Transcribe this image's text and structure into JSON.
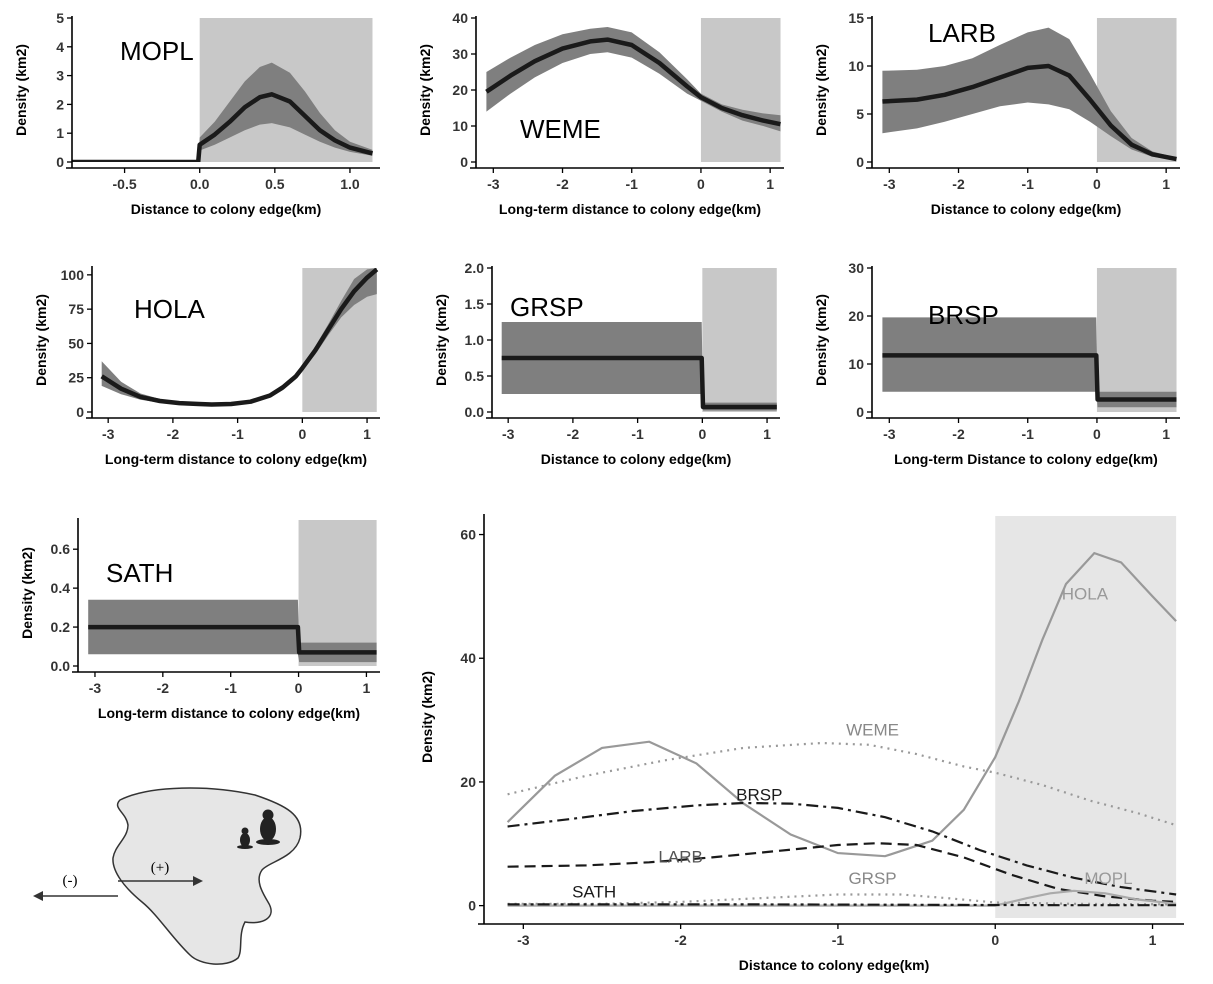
{
  "colors": {
    "colony_shade": "#c8c8c8",
    "colony_shade_light": "#e6e6e6",
    "ci_band": "#7f7f7f",
    "line": "#1a1a1a",
    "light_line": "#999999"
  },
  "inset": {
    "minus_label": "(-)",
    "plus_label": "(+)",
    "icons": [
      "prairie-dog-icon",
      "prairie-dog-small-icon"
    ]
  },
  "chart_data": [
    {
      "id": "mopl",
      "type": "line",
      "label": "MOPL",
      "xlabel": "Distance to colony edge(km)",
      "ylabel": "Density (km2)",
      "xlim": [
        -0.85,
        1.2
      ],
      "ylim": [
        0,
        5
      ],
      "xticks": [
        -0.5,
        0,
        0.5,
        1
      ],
      "xtick_labels": [
        "-0.5",
        "0.0",
        "0.5",
        "1.0"
      ],
      "yticks": [
        0,
        1,
        2,
        3,
        4,
        5
      ],
      "ytick_labels": [
        "0",
        "1",
        "2",
        "3",
        "4",
        "5"
      ],
      "colony_shade": [
        0,
        1.15
      ],
      "x": [
        -0.85,
        -0.01,
        0.0,
        0.1,
        0.2,
        0.3,
        0.4,
        0.48,
        0.6,
        0.7,
        0.8,
        0.9,
        1.0,
        1.15
      ],
      "y": [
        0.0,
        0.0,
        0.6,
        0.95,
        1.4,
        1.9,
        2.25,
        2.35,
        2.1,
        1.6,
        1.1,
        0.75,
        0.5,
        0.3
      ],
      "lower": [
        0.0,
        0.0,
        0.4,
        0.6,
        0.85,
        1.1,
        1.3,
        1.35,
        1.2,
        0.95,
        0.7,
        0.5,
        0.35,
        0.22
      ],
      "upper": [
        0.0,
        0.0,
        0.85,
        1.4,
        2.1,
        2.8,
        3.3,
        3.45,
        3.1,
        2.45,
        1.7,
        1.1,
        0.7,
        0.42
      ]
    },
    {
      "id": "weme",
      "type": "line",
      "label": "WEME",
      "xlabel": "Long-term distance to colony edge(km)",
      "ylabel": "Density (km2)",
      "xlim": [
        -3.25,
        1.2
      ],
      "ylim": [
        0,
        40
      ],
      "xticks": [
        -3,
        -2,
        -1,
        0,
        1
      ],
      "xtick_labels": [
        "-3",
        "-2",
        "-1",
        "0",
        "1"
      ],
      "yticks": [
        0,
        10,
        20,
        30,
        40
      ],
      "ytick_labels": [
        "0",
        "10",
        "20",
        "30",
        "40"
      ],
      "colony_shade": [
        0,
        1.15
      ],
      "x": [
        -3.1,
        -2.75,
        -2.4,
        -2.0,
        -1.6,
        -1.35,
        -1.0,
        -0.6,
        -0.2,
        0.0,
        0.3,
        0.6,
        0.9,
        1.15
      ],
      "y": [
        19.5,
        24.0,
        28.0,
        31.5,
        33.5,
        34.0,
        32.5,
        27.5,
        21.0,
        18.0,
        15.0,
        13.0,
        11.5,
        10.5
      ],
      "lower": [
        14.0,
        19.0,
        23.5,
        27.5,
        30.0,
        30.5,
        29.0,
        24.5,
        19.0,
        17.0,
        14.0,
        11.5,
        10.0,
        8.5
      ],
      "upper": [
        25.0,
        29.0,
        32.5,
        35.5,
        37.0,
        37.5,
        36.0,
        30.5,
        23.0,
        19.0,
        16.0,
        14.5,
        13.5,
        13.0
      ]
    },
    {
      "id": "larb",
      "type": "line",
      "label": "LARB",
      "xlabel": "Distance to colony edge(km)",
      "ylabel": "Density (km2)",
      "xlim": [
        -3.25,
        1.2
      ],
      "ylim": [
        0,
        15
      ],
      "xticks": [
        -3,
        -2,
        -1,
        0,
        1
      ],
      "xtick_labels": [
        "-3",
        "-2",
        "-1",
        "0",
        "1"
      ],
      "yticks": [
        0,
        5,
        10,
        15
      ],
      "ytick_labels": [
        "0",
        "5",
        "10",
        "15"
      ],
      "colony_shade": [
        0,
        1.15
      ],
      "x": [
        -3.1,
        -2.6,
        -2.2,
        -1.8,
        -1.4,
        -1.0,
        -0.7,
        -0.4,
        -0.1,
        0.2,
        0.5,
        0.8,
        1.15
      ],
      "y": [
        6.3,
        6.5,
        7.0,
        7.8,
        8.8,
        9.8,
        10.0,
        9.0,
        6.5,
        3.8,
        1.8,
        0.8,
        0.3
      ],
      "lower": [
        3.0,
        3.5,
        4.2,
        5.0,
        5.8,
        6.2,
        6.0,
        5.5,
        4.2,
        2.7,
        1.3,
        0.55,
        0.2
      ],
      "upper": [
        9.5,
        9.6,
        10.0,
        10.8,
        12.2,
        13.5,
        14.0,
        12.8,
        9.2,
        5.3,
        2.5,
        1.1,
        0.45
      ]
    },
    {
      "id": "hola",
      "type": "line",
      "label": "HOLA",
      "xlabel": "Long-term distance to  colony edge(km)",
      "ylabel": "Density (km2)",
      "xlim": [
        -3.25,
        1.2
      ],
      "ylim": [
        0,
        105
      ],
      "xticks": [
        -3,
        -2,
        -1,
        0,
        1
      ],
      "xtick_labels": [
        "-3",
        "-2",
        "-1",
        "0",
        "1"
      ],
      "yticks": [
        0,
        25,
        50,
        75,
        100
      ],
      "ytick_labels": [
        "0",
        "25",
        "50",
        "75",
        "100"
      ],
      "colony_shade": [
        0,
        1.15
      ],
      "x": [
        -3.1,
        -2.8,
        -2.5,
        -2.2,
        -1.9,
        -1.6,
        -1.4,
        -1.1,
        -0.8,
        -0.5,
        -0.3,
        -0.1,
        0.0,
        0.2,
        0.4,
        0.6,
        0.8,
        1.0,
        1.15
      ],
      "y": [
        26.0,
        17.0,
        11.0,
        8.0,
        6.5,
        5.8,
        5.5,
        5.8,
        7.5,
        12.0,
        18.0,
        26.0,
        32.0,
        45.0,
        60.0,
        75.0,
        88.0,
        98.0,
        104.0
      ],
      "lower": [
        19.0,
        13.0,
        9.0,
        6.8,
        5.6,
        5.0,
        4.8,
        5.0,
        6.5,
        10.5,
        16.0,
        24.0,
        30.0,
        42.0,
        56.0,
        69.0,
        78.0,
        84.0,
        86.0
      ],
      "upper": [
        37.0,
        22.0,
        13.5,
        9.5,
        7.5,
        6.7,
        6.3,
        6.7,
        8.6,
        13.5,
        20.0,
        28.0,
        34.0,
        48.0,
        64.0,
        81.0,
        97.0,
        104.0,
        105.0
      ]
    },
    {
      "id": "grsp",
      "type": "line",
      "label": "GRSP",
      "xlabel": "Distance to colony edge(km)",
      "ylabel": "Density (km2)",
      "xlim": [
        -3.25,
        1.2
      ],
      "ylim": [
        0,
        2.0
      ],
      "xticks": [
        -3,
        -2,
        -1,
        0,
        1
      ],
      "xtick_labels": [
        "-3",
        "-2",
        "-1",
        "0",
        "1"
      ],
      "yticks": [
        0,
        0.5,
        1.0,
        1.5,
        2.0
      ],
      "ytick_labels": [
        "0.0",
        "0.5",
        "1.0",
        "1.5",
        "2.0"
      ],
      "colony_shade": [
        0,
        1.15
      ],
      "x": [
        -3.1,
        -0.01,
        0.01,
        1.15
      ],
      "y": [
        0.75,
        0.75,
        0.07,
        0.07
      ],
      "lower": [
        0.25,
        0.25,
        0.02,
        0.02
      ],
      "upper": [
        1.25,
        1.25,
        0.13,
        0.13
      ]
    },
    {
      "id": "brsp",
      "type": "line",
      "label": "BRSP",
      "xlabel": "Long-term Distance to colony edge(km)",
      "ylabel": "Density (km2)",
      "xlim": [
        -3.25,
        1.2
      ],
      "ylim": [
        0,
        30
      ],
      "xticks": [
        -3,
        -2,
        -1,
        0,
        1
      ],
      "xtick_labels": [
        "-3",
        "-2",
        "-1",
        "0",
        "1"
      ],
      "yticks": [
        0,
        10,
        20,
        30
      ],
      "ytick_labels": [
        "0",
        "10",
        "20",
        "30"
      ],
      "colony_shade": [
        0,
        1.15
      ],
      "x": [
        -3.1,
        -0.01,
        0.01,
        1.15
      ],
      "y": [
        11.8,
        11.8,
        2.6,
        2.6
      ],
      "lower": [
        4.2,
        4.2,
        1.0,
        1.0
      ],
      "upper": [
        19.7,
        19.7,
        4.2,
        4.2
      ]
    },
    {
      "id": "sath",
      "type": "line",
      "label": "SATH",
      "xlabel": "Long-term distance to colony edge(km)",
      "ylabel": "Density (km2)",
      "xlim": [
        -3.25,
        1.2
      ],
      "ylim": [
        0,
        0.75
      ],
      "xticks": [
        -3,
        -2,
        -1,
        0,
        1
      ],
      "xtick_labels": [
        "-3",
        "-2",
        "-1",
        "0",
        "1"
      ],
      "yticks": [
        0,
        0.2,
        0.4,
        0.6
      ],
      "ytick_labels": [
        "0.0",
        "0.2",
        "0.4",
        "0.6"
      ],
      "colony_shade": [
        0,
        1.15
      ],
      "x": [
        -3.1,
        -0.01,
        0.01,
        1.15
      ],
      "y": [
        0.2,
        0.2,
        0.07,
        0.07
      ],
      "lower": [
        0.06,
        0.06,
        0.02,
        0.02
      ],
      "upper": [
        0.34,
        0.34,
        0.12,
        0.12
      ]
    },
    {
      "id": "combined",
      "type": "line",
      "xlabel": "Distance to colony edge(km)",
      "ylabel": "Density (km2)",
      "xlim": [
        -3.25,
        1.2
      ],
      "ylim": [
        -2,
        63
      ],
      "xticks": [
        -3,
        -2,
        -1,
        0,
        1
      ],
      "xtick_labels": [
        "-3",
        "-2",
        "-1",
        "0",
        "1"
      ],
      "yticks": [
        0,
        20,
        40,
        60
      ],
      "ytick_labels": [
        "0",
        "20",
        "40",
        "60"
      ],
      "colony_shade": [
        0,
        1.15
      ],
      "series": [
        {
          "name": "HOLA",
          "style": "solid",
          "color": "#999999",
          "x": [
            -3.1,
            -2.8,
            -2.5,
            -2.2,
            -1.9,
            -1.6,
            -1.3,
            -1.0,
            -0.7,
            -0.4,
            -0.2,
            0.0,
            0.15,
            0.3,
            0.45,
            0.63,
            0.8,
            1.0,
            1.15
          ],
          "y": [
            13.5,
            21.0,
            25.5,
            26.5,
            23.0,
            16.5,
            11.5,
            8.5,
            8.0,
            10.5,
            15.5,
            24.0,
            33.0,
            43.0,
            52.0,
            57.0,
            55.5,
            50.0,
            46.0
          ]
        },
        {
          "name": "WEME",
          "style": "dotted",
          "color": "#999999",
          "x": [
            -3.1,
            -2.6,
            -2.1,
            -1.6,
            -1.1,
            -0.8,
            -0.5,
            -0.2,
            0.0,
            0.3,
            0.6,
            0.9,
            1.15
          ],
          "y": [
            18.0,
            21.0,
            23.5,
            25.5,
            26.3,
            26.0,
            24.5,
            22.5,
            21.5,
            19.5,
            17.0,
            15.0,
            13.0
          ]
        },
        {
          "name": "BRSP",
          "style": "dashdot",
          "color": "#1a1a1a",
          "x": [
            -3.1,
            -2.7,
            -2.3,
            -1.9,
            -1.6,
            -1.3,
            -1.0,
            -0.7,
            -0.4,
            -0.1,
            0.2,
            0.5,
            0.8,
            1.15
          ],
          "y": [
            12.8,
            14.0,
            15.3,
            16.2,
            16.6,
            16.5,
            15.8,
            14.3,
            12.0,
            9.0,
            6.5,
            4.5,
            3.0,
            1.8
          ]
        },
        {
          "name": "LARB",
          "style": "dashed",
          "color": "#1a1a1a",
          "x": [
            -3.1,
            -2.6,
            -2.2,
            -1.8,
            -1.4,
            -1.0,
            -0.75,
            -0.5,
            -0.2,
            0.1,
            0.4,
            0.7,
            1.0,
            1.15
          ],
          "y": [
            6.3,
            6.5,
            7.0,
            7.8,
            8.8,
            9.8,
            10.1,
            9.8,
            7.8,
            5.0,
            2.7,
            1.5,
            0.8,
            0.6
          ]
        },
        {
          "name": "GRSP",
          "style": "dotted",
          "color": "#999999",
          "x": [
            -3.1,
            -2.5,
            -2.0,
            -1.5,
            -1.0,
            -0.6,
            -0.3,
            0.0,
            0.5,
            1.15
          ],
          "y": [
            0.3,
            0.3,
            0.6,
            1.2,
            1.8,
            1.8,
            1.2,
            0.5,
            0.3,
            0.2
          ]
        },
        {
          "name": "MOPL",
          "style": "solid",
          "color": "#aaaaaa",
          "x": [
            -3.1,
            0.0,
            0.2,
            0.35,
            0.5,
            0.7,
            0.9,
            1.15
          ],
          "y": [
            0.0,
            0.0,
            1.2,
            2.0,
            2.4,
            2.0,
            1.0,
            0.3
          ]
        },
        {
          "name": "SATH",
          "style": "dashdotdot",
          "color": "#1a1a1a",
          "x": [
            -3.1,
            -1.5,
            0.0,
            0.5,
            1.15
          ],
          "y": [
            0.2,
            0.2,
            0.1,
            0.07,
            0.07
          ]
        }
      ],
      "labels": [
        {
          "text": "HOLA",
          "x": 0.57,
          "y": 49.5,
          "color": "#999999"
        },
        {
          "text": "WEME",
          "x": -0.78,
          "y": 27.5,
          "color": "#888888"
        },
        {
          "text": "BRSP",
          "x": -1.5,
          "y": 17.0,
          "color": "#1a1a1a"
        },
        {
          "text": "LARB",
          "x": -2.0,
          "y": 7.0,
          "color": "#555555"
        },
        {
          "text": "GRSP",
          "x": -0.78,
          "y": 3.5,
          "color": "#888888"
        },
        {
          "text": "MOPL",
          "x": 0.72,
          "y": 3.5,
          "color": "#999999"
        },
        {
          "text": "SATH",
          "x": -2.55,
          "y": 1.3,
          "color": "#1a1a1a"
        }
      ]
    }
  ]
}
